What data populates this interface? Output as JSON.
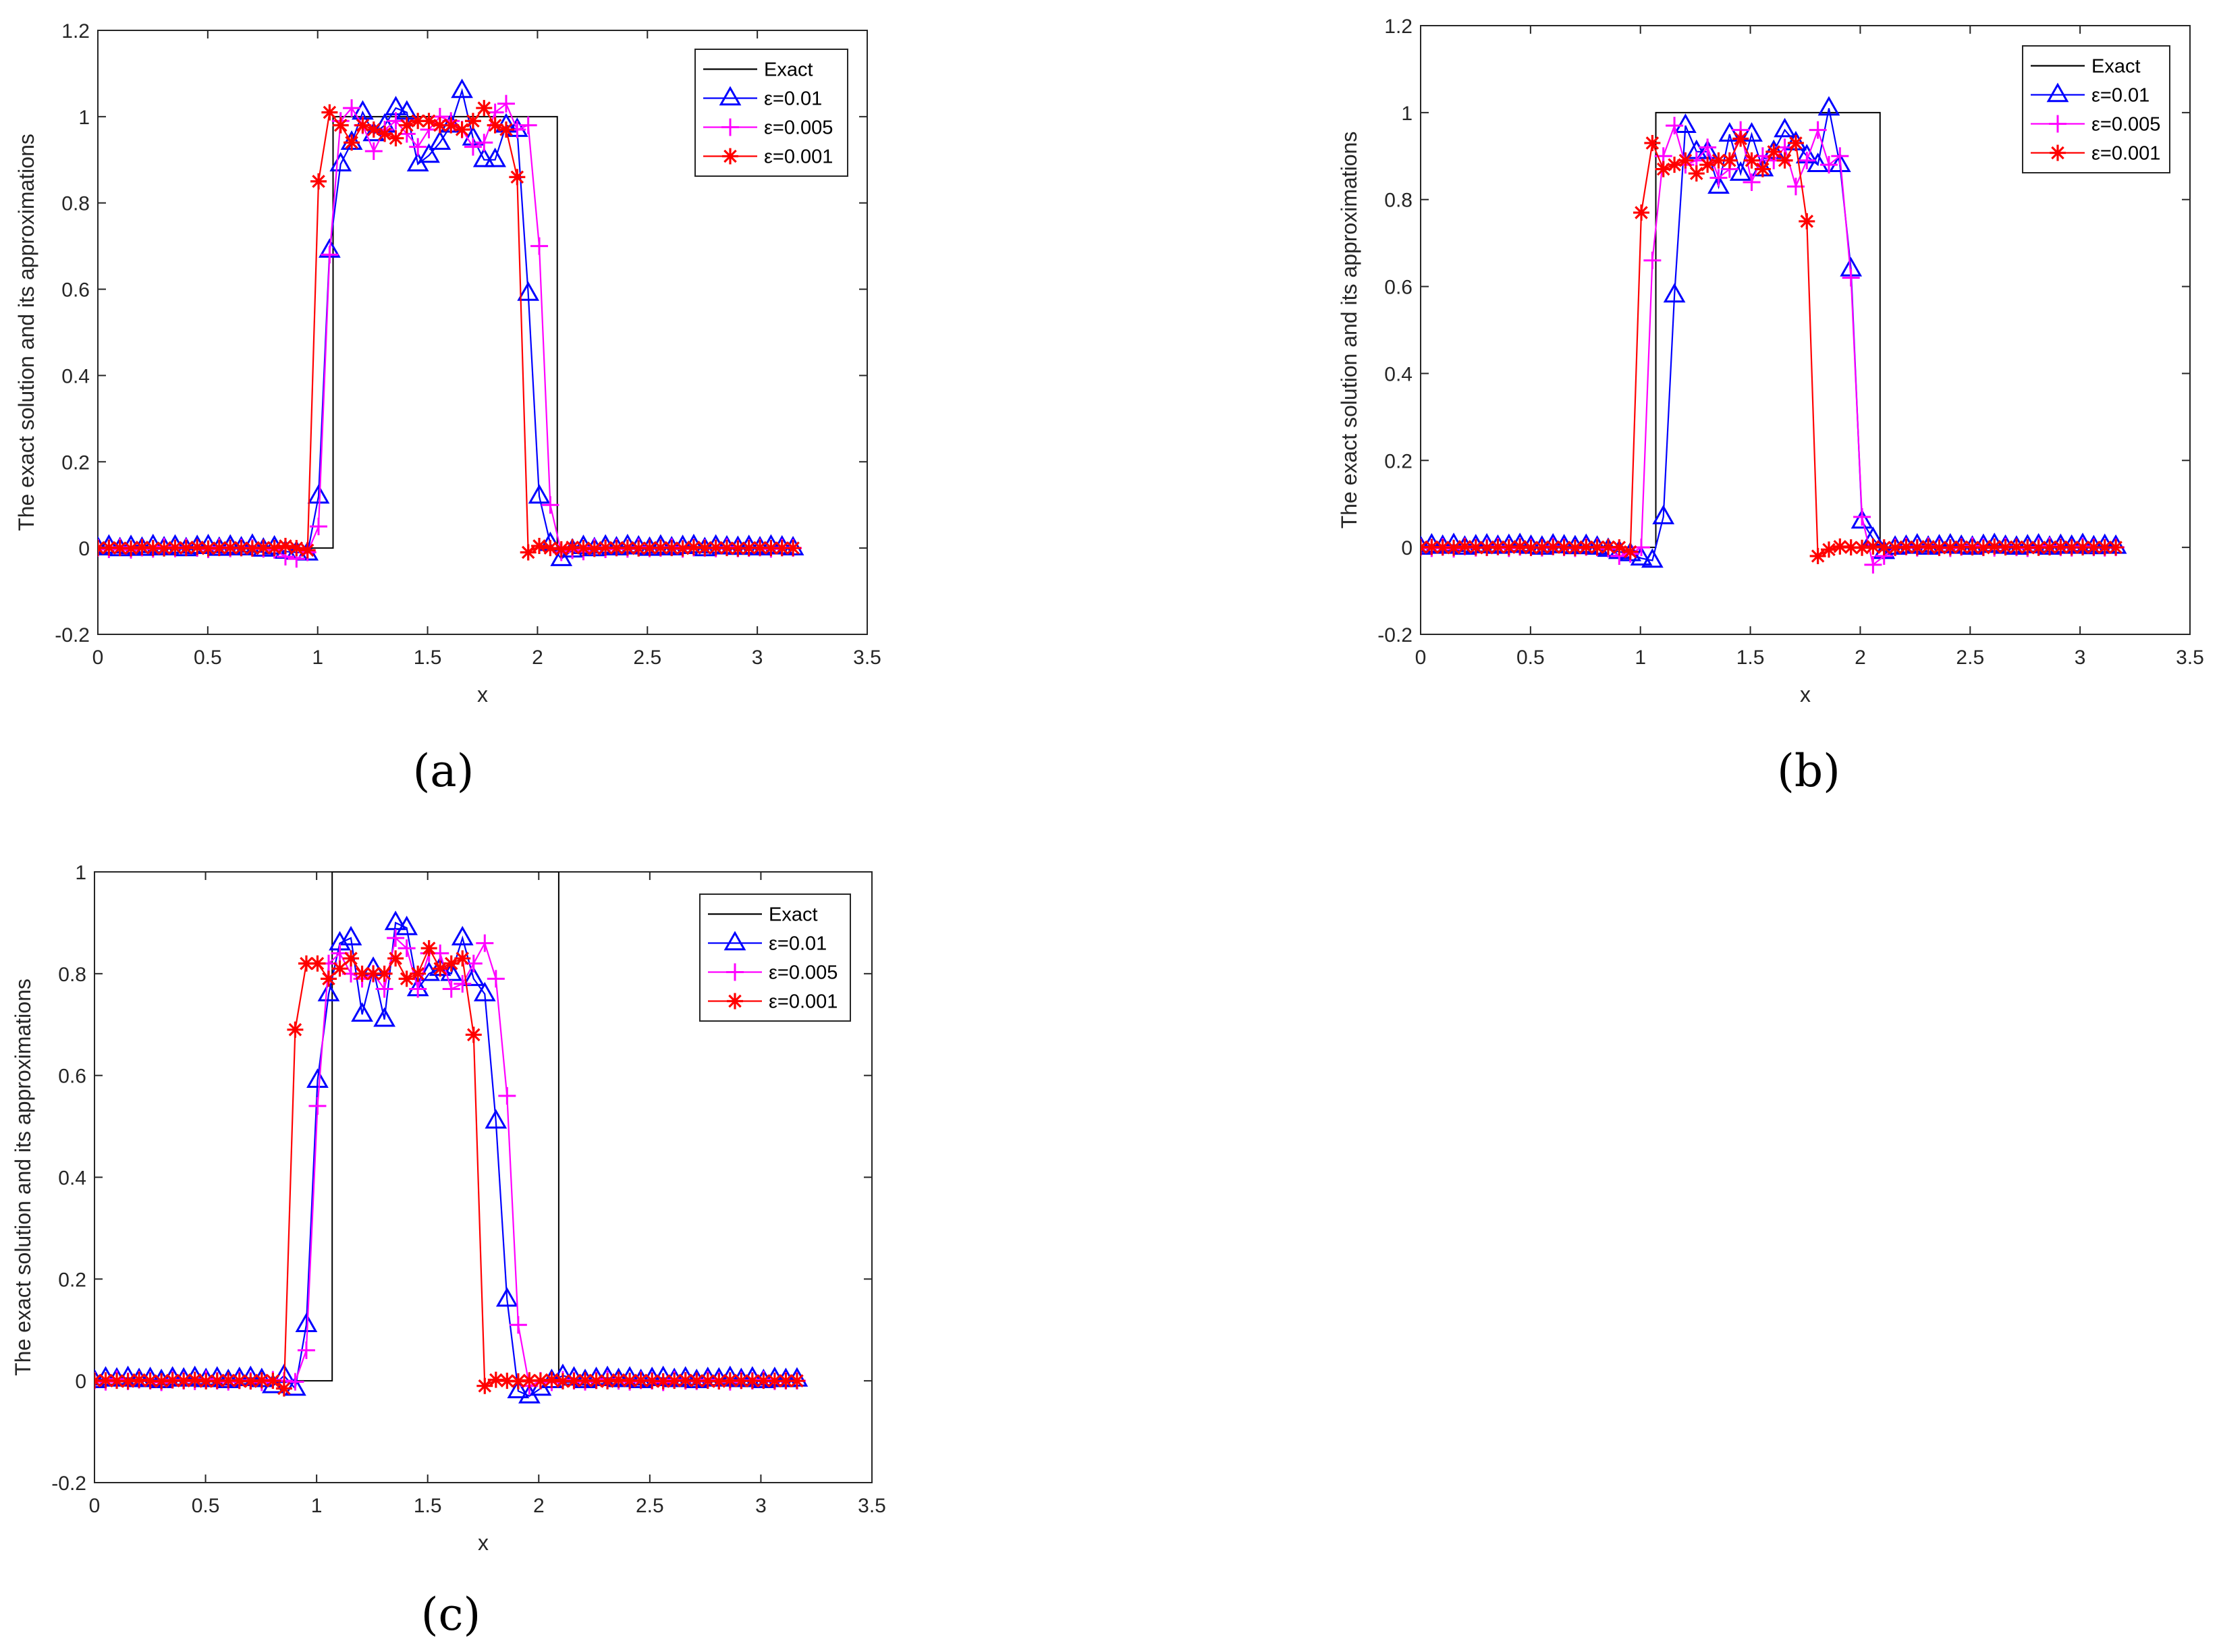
{
  "chart_data": [
    {
      "panel_label": "(a)",
      "type": "line",
      "ylabel": "The exact solution and its approximations",
      "xlabel": "x",
      "xlim": [
        0,
        3.5
      ],
      "ylim": [
        -0.2,
        1.2
      ],
      "xticks": [
        "0",
        "0.5",
        "1",
        "1.5",
        "2",
        "2.5",
        "3",
        "3.5"
      ],
      "yticks": [
        "-0.2",
        "0",
        "0.2",
        "0.4",
        "0.6",
        "0.8",
        "1",
        "1.2"
      ],
      "x": [
        0.0,
        0.0502,
        0.1004,
        0.1506,
        0.2008,
        0.251,
        0.3012,
        0.3514,
        0.4016,
        0.4518,
        0.502,
        0.5522,
        0.6024,
        0.6526,
        0.7028,
        0.753,
        0.8032,
        0.8534,
        0.9036,
        0.9538,
        1.004,
        1.0542,
        1.1044,
        1.1546,
        1.2048,
        1.255,
        1.3052,
        1.3554,
        1.4056,
        1.4558,
        1.506,
        1.5562,
        1.6064,
        1.6566,
        1.7068,
        1.757,
        1.8072,
        1.8574,
        1.9076,
        1.9578,
        2.008,
        2.0582,
        2.1084,
        2.1586,
        2.2088,
        2.259,
        2.3092,
        2.3594,
        2.4096,
        2.4598,
        2.51,
        2.5602,
        2.6104,
        2.6606,
        2.7108,
        2.761,
        2.8112,
        2.8614,
        2.9116,
        2.9618,
        3.012,
        3.0622,
        3.1124,
        3.1626
      ],
      "exact": {
        "name": "Exact",
        "low": 0,
        "high": 1,
        "x_start": 1.07,
        "x_end": 2.09
      },
      "series": [
        {
          "name": "ε=0.01",
          "color": "#0000ff",
          "marker": "triangle",
          "values": [
            0.0,
            0.004,
            -0.002,
            0.003,
            -0.001,
            0.005,
            0.0,
            0.004,
            -0.002,
            0.003,
            0.005,
            -0.001,
            0.004,
            0.0,
            0.006,
            -0.003,
            0.002,
            -0.008,
            -0.01,
            -0.012,
            0.12,
            0.69,
            0.89,
            0.94,
            1.01,
            0.96,
            0.98,
            1.02,
            1.01,
            0.89,
            0.91,
            0.94,
            0.98,
            1.06,
            0.95,
            0.9,
            0.9,
            0.98,
            0.97,
            0.59,
            0.12,
            0.01,
            -0.025,
            -0.005,
            0.003,
            -0.002,
            0.004,
            0.0,
            0.005,
            0.002,
            -0.001,
            0.004,
            0.0,
            0.003,
            0.005,
            -0.002,
            0.004,
            0.002,
            0.001,
            0.003,
            0.0,
            0.004,
            0.002,
            0.0
          ]
        },
        {
          "name": "ε=0.005",
          "color": "#ff00ff",
          "marker": "plus",
          "values": [
            0.0,
            -0.003,
            0.002,
            -0.004,
            0.001,
            -0.002,
            0.003,
            -0.001,
            0.002,
            0.0,
            -0.003,
            0.002,
            -0.001,
            0.001,
            0.0,
            -0.002,
            -0.004,
            -0.02,
            -0.025,
            -0.01,
            0.05,
            0.68,
            0.99,
            1.02,
            0.98,
            0.92,
            0.97,
            0.99,
            0.96,
            0.93,
            0.97,
            1.0,
            0.99,
            0.97,
            0.93,
            0.94,
            1.01,
            1.03,
            0.97,
            0.98,
            0.7,
            0.1,
            -0.01,
            -0.005,
            -0.008,
            0.002,
            -0.003,
            0.001,
            -0.002,
            0.002,
            -0.001,
            0.0,
            0.002,
            -0.002,
            0.001,
            0.0,
            -0.001,
            0.002,
            -0.001,
            0.0,
            0.001,
            -0.002,
            0.001,
            0.0
          ]
        },
        {
          "name": "ε=0.001",
          "color": "#ff0000",
          "marker": "star",
          "values": [
            0.0,
            0.001,
            0.0,
            -0.001,
            0.002,
            0.0,
            -0.001,
            0.001,
            0.0,
            0.002,
            -0.001,
            0.0,
            0.001,
            0.0,
            -0.001,
            0.001,
            0.0,
            0.005,
            0.0,
            -0.005,
            0.85,
            1.01,
            0.98,
            0.94,
            0.98,
            0.97,
            0.96,
            0.95,
            0.98,
            0.99,
            0.99,
            0.98,
            0.98,
            0.97,
            0.99,
            1.02,
            0.98,
            0.97,
            0.86,
            -0.01,
            0.005,
            0.0,
            -0.003,
            0.002,
            0.0,
            -0.002,
            0.001,
            0.0,
            0.001,
            -0.001,
            0.0,
            0.001,
            0.0,
            -0.001,
            0.002,
            0.0,
            0.001,
            0.0,
            -0.001,
            0.0,
            0.001,
            0.0,
            0.0,
            0.0
          ]
        }
      ]
    },
    {
      "panel_label": "(b)",
      "type": "line",
      "ylabel": "The exact solution and its approximations",
      "xlabel": "x",
      "xlim": [
        0,
        3.5
      ],
      "ylim": [
        -0.2,
        1.2
      ],
      "xticks": [
        "0",
        "0.5",
        "1",
        "1.5",
        "2",
        "2.5",
        "3",
        "3.5"
      ],
      "yticks": [
        "-0.2",
        "0",
        "0.2",
        "0.4",
        "0.6",
        "0.8",
        "1",
        "1.2"
      ],
      "x": [
        0.0,
        0.0502,
        0.1004,
        0.1506,
        0.2008,
        0.251,
        0.3012,
        0.3514,
        0.4016,
        0.4518,
        0.502,
        0.5522,
        0.6024,
        0.6526,
        0.7028,
        0.753,
        0.8032,
        0.8534,
        0.9036,
        0.9538,
        1.004,
        1.0542,
        1.1044,
        1.1546,
        1.2048,
        1.255,
        1.3052,
        1.3554,
        1.4056,
        1.4558,
        1.506,
        1.5562,
        1.6064,
        1.6566,
        1.7068,
        1.757,
        1.8072,
        1.8574,
        1.9076,
        1.9578,
        2.008,
        2.0582,
        2.1084,
        2.1586,
        2.2088,
        2.259,
        2.3092,
        2.3594,
        2.4096,
        2.4598,
        2.51,
        2.5602,
        2.6104,
        2.6606,
        2.7108,
        2.761,
        2.8112,
        2.8614,
        2.9116,
        2.9618,
        3.012,
        3.0622,
        3.1124,
        3.1626
      ],
      "exact": {
        "name": "Exact",
        "low": 0,
        "high": 1,
        "x_start": 1.07,
        "x_end": 2.09
      },
      "series": [
        {
          "name": "ε=0.01",
          "color": "#0000ff",
          "marker": "triangle",
          "values": [
            0.0,
            0.005,
            0.002,
            0.006,
            0.0,
            0.003,
            0.005,
            0.002,
            0.004,
            0.006,
            0.002,
            0.0,
            0.005,
            0.003,
            0.001,
            0.004,
            0.0,
            -0.005,
            -0.01,
            -0.015,
            -0.025,
            -0.03,
            0.07,
            0.58,
            0.97,
            0.91,
            0.91,
            0.83,
            0.95,
            0.86,
            0.95,
            0.87,
            0.91,
            0.96,
            0.93,
            0.9,
            0.88,
            1.01,
            0.88,
            0.64,
            0.06,
            0.02,
            -0.01,
            0.0,
            0.002,
            0.005,
            0.0,
            0.003,
            0.005,
            0.002,
            0.0,
            0.004,
            0.006,
            0.002,
            0.0,
            0.003,
            0.005,
            0.0,
            0.004,
            0.002,
            0.006,
            0.001,
            0.004,
            0.002
          ]
        },
        {
          "name": "ε=0.005",
          "color": "#ff00ff",
          "marker": "plus",
          "values": [
            0.0,
            -0.002,
            0.001,
            -0.003,
            0.002,
            -0.001,
            0.0,
            0.002,
            -0.002,
            0.001,
            0.0,
            -0.001,
            0.002,
            0.0,
            -0.002,
            0.001,
            0.0,
            -0.003,
            -0.02,
            -0.015,
            0.0,
            0.66,
            0.9,
            0.97,
            0.88,
            0.89,
            0.92,
            0.85,
            0.87,
            0.96,
            0.84,
            0.9,
            0.89,
            0.92,
            0.83,
            0.89,
            0.96,
            0.88,
            0.9,
            0.62,
            0.07,
            -0.04,
            -0.02,
            0.0,
            0.002,
            -0.001,
            0.003,
            0.0,
            -0.002,
            0.001,
            0.003,
            0.0,
            -0.001,
            0.002,
            0.0,
            -0.002,
            0.001,
            0.003,
            0.0,
            -0.001,
            0.002,
            0.0,
            -0.001,
            0.0
          ]
        },
        {
          "name": "ε=0.001",
          "color": "#ff0000",
          "marker": "star",
          "values": [
            0.0,
            0.001,
            0.0,
            -0.001,
            0.002,
            0.0,
            -0.001,
            0.001,
            0.0,
            0.002,
            -0.001,
            0.0,
            0.001,
            0.0,
            -0.001,
            0.001,
            0.0,
            0.001,
            0.0,
            -0.01,
            0.77,
            0.93,
            0.87,
            0.88,
            0.89,
            0.86,
            0.88,
            0.89,
            0.89,
            0.94,
            0.89,
            0.87,
            0.91,
            0.89,
            0.93,
            0.75,
            -0.02,
            -0.005,
            0.002,
            0.0,
            -0.001,
            0.002,
            0.0,
            -0.001,
            0.001,
            0.0,
            0.002,
            -0.001,
            0.0,
            0.001,
            0.0,
            -0.001,
            0.002,
            0.0,
            0.001,
            0.0,
            -0.001,
            0.0,
            0.001,
            0.0,
            0.0,
            0.0,
            0.0,
            0.0
          ]
        }
      ]
    },
    {
      "panel_label": "(c)",
      "type": "line",
      "ylabel": "The exact solution and its approximations",
      "xlabel": "x",
      "xlim": [
        0,
        3.5
      ],
      "ylim": [
        -0.2,
        1.0
      ],
      "xticks": [
        "0",
        "0.5",
        "1",
        "1.5",
        "2",
        "2.5",
        "3",
        "3.5"
      ],
      "yticks": [
        "-0.2",
        "0",
        "0.2",
        "0.4",
        "0.6",
        "0.8",
        "1"
      ],
      "x": [
        0.0,
        0.0502,
        0.1004,
        0.1506,
        0.2008,
        0.251,
        0.3012,
        0.3514,
        0.4016,
        0.4518,
        0.502,
        0.5522,
        0.6024,
        0.6526,
        0.7028,
        0.753,
        0.8032,
        0.8534,
        0.9036,
        0.9538,
        1.004,
        1.0542,
        1.1044,
        1.1546,
        1.2048,
        1.255,
        1.3052,
        1.3554,
        1.4056,
        1.4558,
        1.506,
        1.5562,
        1.6064,
        1.6566,
        1.7068,
        1.757,
        1.8072,
        1.8574,
        1.9076,
        1.9578,
        2.008,
        2.0582,
        2.1084,
        2.1586,
        2.2088,
        2.259,
        2.3092,
        2.3594,
        2.4096,
        2.4598,
        2.51,
        2.5602,
        2.6104,
        2.6606,
        2.7108,
        2.761,
        2.8112,
        2.8614,
        2.9116,
        2.9618,
        3.012,
        3.0622,
        3.1124,
        3.1626
      ],
      "exact": {
        "name": "Exact",
        "low": 0,
        "high": 1,
        "x_start": 1.07,
        "x_end": 2.09
      },
      "series": [
        {
          "name": "ε=0.01",
          "color": "#0000ff",
          "marker": "triangle",
          "values": [
            0.0,
            0.005,
            0.003,
            0.006,
            0.002,
            0.004,
            0.0,
            0.005,
            0.003,
            0.006,
            0.002,
            0.005,
            0.0,
            0.004,
            0.006,
            0.002,
            -0.01,
            0.01,
            -0.015,
            0.11,
            0.59,
            0.76,
            0.86,
            0.87,
            0.72,
            0.81,
            0.71,
            0.9,
            0.89,
            0.77,
            0.8,
            0.81,
            0.8,
            0.87,
            0.79,
            0.76,
            0.51,
            0.16,
            -0.02,
            -0.03,
            -0.015,
            0.0,
            0.01,
            0.005,
            0.0,
            0.004,
            0.006,
            0.002,
            0.005,
            0.0,
            0.004,
            0.006,
            0.002,
            0.005,
            0.0,
            0.004,
            0.003,
            0.006,
            0.002,
            0.005,
            0.0,
            0.004,
            0.002,
            0.003
          ]
        },
        {
          "name": "ε=0.005",
          "color": "#ff00ff",
          "marker": "plus",
          "values": [
            0.0,
            -0.002,
            0.003,
            -0.001,
            0.002,
            0.0,
            -0.003,
            0.002,
            0.0,
            -0.001,
            0.003,
            0.0,
            -0.002,
            0.001,
            0.0,
            -0.003,
            0.002,
            0.0,
            -0.002,
            0.06,
            0.54,
            0.82,
            0.84,
            0.8,
            0.79,
            0.8,
            0.77,
            0.87,
            0.85,
            0.77,
            0.84,
            0.84,
            0.77,
            0.78,
            0.82,
            0.86,
            0.79,
            0.56,
            0.11,
            -0.01,
            0.0,
            -0.003,
            0.002,
            0.0,
            -0.002,
            0.001,
            0.003,
            0.0,
            -0.002,
            0.001,
            0.0,
            -0.003,
            0.002,
            0.0,
            -0.001,
            0.002,
            0.0,
            -0.002,
            0.001,
            0.0,
            0.002,
            -0.001,
            0.0,
            0.0
          ]
        },
        {
          "name": "ε=0.001",
          "color": "#ff0000",
          "marker": "star",
          "values": [
            0.0,
            0.001,
            0.0,
            -0.001,
            0.002,
            0.0,
            -0.001,
            0.001,
            0.0,
            0.002,
            -0.001,
            0.0,
            0.001,
            0.0,
            -0.001,
            0.001,
            0.0,
            -0.015,
            0.69,
            0.82,
            0.82,
            0.79,
            0.81,
            0.83,
            0.8,
            0.8,
            0.8,
            0.83,
            0.79,
            0.8,
            0.85,
            0.81,
            0.82,
            0.83,
            0.68,
            -0.01,
            0.002,
            0.0,
            -0.001,
            0.001,
            0.0,
            0.002,
            -0.001,
            0.0,
            0.001,
            0.0,
            -0.001,
            0.002,
            0.0,
            0.001,
            0.0,
            -0.001,
            0.0,
            0.001,
            0.0,
            0.0,
            -0.001,
            0.001,
            0.0,
            0.0,
            0.0,
            0.0,
            0.0,
            0.0
          ]
        }
      ]
    }
  ]
}
